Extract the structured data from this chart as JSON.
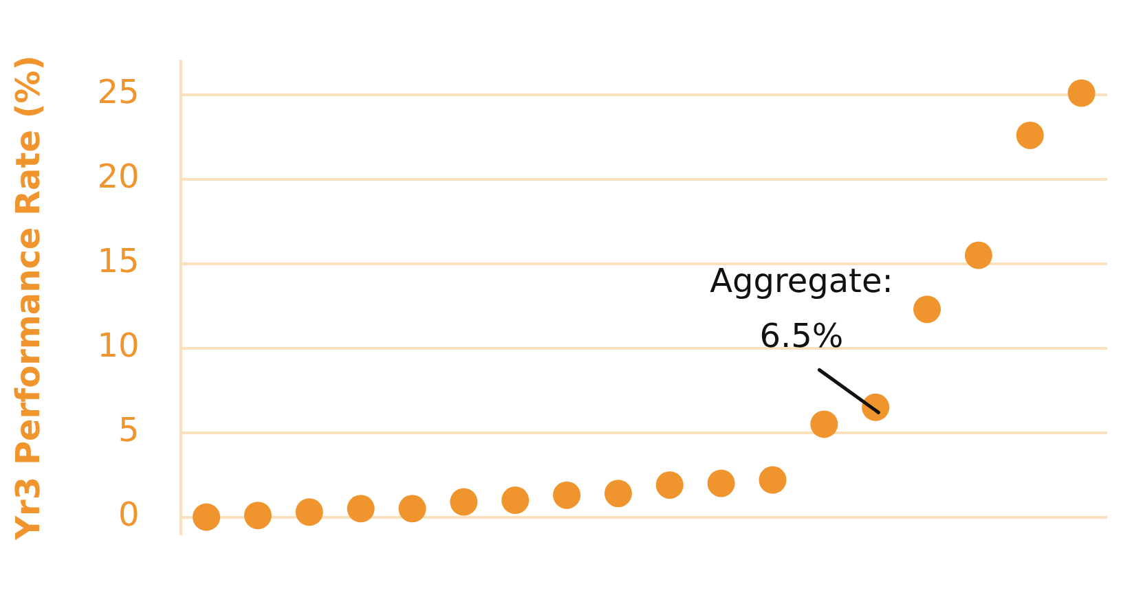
{
  "chart_data": {
    "type": "scatter",
    "ylabel": "Yr3 Performance Rate (%)",
    "categories": [
      null,
      null,
      null,
      null,
      null,
      null,
      null,
      null,
      null,
      null,
      null,
      null,
      null,
      null,
      null,
      null,
      null,
      null
    ],
    "series": [
      {
        "color": "#f0952d",
        "values": [
          0,
          0.1,
          0.3,
          0.5,
          0.5,
          0.9,
          1,
          1.3,
          1.4,
          1.9,
          2,
          2.2,
          5.5,
          6.5,
          12.3,
          15.5,
          22.6,
          25.1
        ]
      }
    ],
    "ylim": [
      -1,
      27
    ],
    "yticks": [
      0,
      5,
      10,
      15,
      20,
      25
    ],
    "grid": "y",
    "legend": false,
    "marker": "circle",
    "tick_labels": "y",
    "annotations": [
      "Aggregate:\n6.5%"
    ]
  }
}
